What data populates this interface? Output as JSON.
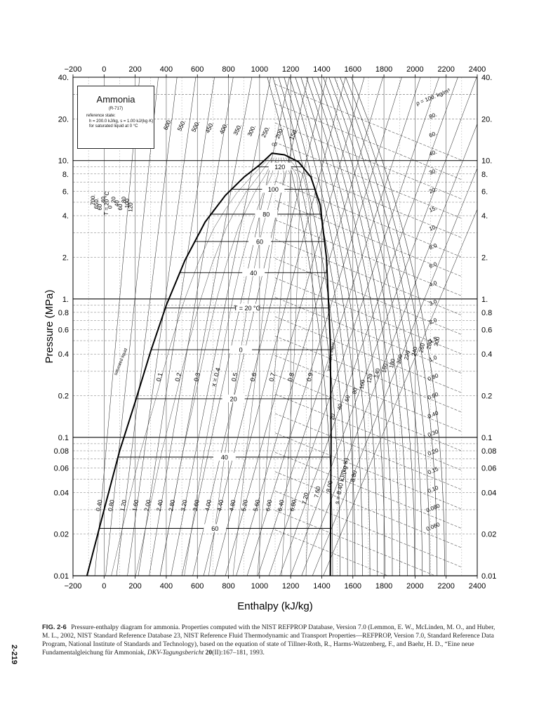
{
  "chart_data": {
    "type": "line",
    "xlabel": "Enthalpy (kJ/kg)",
    "ylabel": "Pressure (MPa)",
    "xlim": [
      -200,
      2400
    ],
    "ylim": [
      0.01,
      40
    ],
    "yscale": "log",
    "x_ticks": [
      -200,
      0,
      200,
      400,
      600,
      800,
      1000,
      1200,
      1400,
      1600,
      1800,
      2000,
      2200,
      2400
    ],
    "x_tick_labels": [
      "−200",
      "0",
      "200",
      "400",
      "600",
      "800",
      "1000",
      "1200",
      "1400",
      "1600",
      "1800",
      "2000",
      "2200",
      "2400"
    ],
    "y_ticks": [
      0.01,
      0.02,
      0.04,
      0.06,
      0.08,
      0.1,
      0.2,
      0.4,
      0.6,
      0.8,
      1,
      2,
      4,
      6,
      8,
      10,
      20,
      40
    ],
    "y_tick_labels": [
      "0.01",
      "0.02",
      "0.04",
      "0.06",
      "0.08",
      "0.1",
      "0.2",
      "0.4",
      "0.6",
      "0.8",
      "1.",
      "2.",
      "4.",
      "6.",
      "8.",
      "10.",
      "20.",
      "40."
    ],
    "grid": true,
    "legend": {
      "title": "Ammonia",
      "subtitle": "(R-717)",
      "lines": [
        "reference state:",
        "h = 200.0 kJ/kg,  s = 1.00 kJ/(kg·K)",
        "for saturated liquid at 0 °C"
      ]
    },
    "saturation_dome": {
      "liquid": {
        "h": [
          -110,
          0,
          100,
          200,
          300,
          400,
          520,
          650,
          780,
          900,
          1000,
          1080
        ],
        "p": [
          0.01,
          0.03,
          0.08,
          0.18,
          0.42,
          0.9,
          1.9,
          3.6,
          5.6,
          7.6,
          9.3,
          11.3
        ]
      },
      "vapor": {
        "h": [
          1080,
          1160,
          1250,
          1330,
          1390,
          1430,
          1455,
          1460,
          1455
        ],
        "p": [
          11.3,
          11.0,
          9.8,
          7.6,
          4.8,
          2.0,
          0.5,
          0.1,
          0.01
        ]
      },
      "critical_point_label": "cp",
      "liquid_label": "saturated liquid",
      "vapor_label": "saturated vapor"
    },
    "isotherm_labels_in_dome": [
      {
        "label": "120",
        "p": 9.0
      },
      {
        "label": "100",
        "p": 6.2
      },
      {
        "label": "80",
        "p": 4.1
      },
      {
        "label": "60",
        "p": 2.6
      },
      {
        "label": "40",
        "p": 1.55
      },
      {
        "label": "T = 20 °C",
        "p": 0.86
      },
      {
        "label": "0",
        "p": 0.43
      },
      {
        "label": "20",
        "p": 0.19
      },
      {
        "label": "40",
        "p": 0.072
      },
      {
        "label": "60",
        "p": 0.022
      }
    ],
    "quality_labels": [
      "0.1",
      "0.2",
      "0.3",
      "x = 0.4",
      "0.5",
      "0.6",
      "0.7",
      "0.8",
      "0.9"
    ],
    "entropy_labels_bottom": [
      "0.40",
      "0.80",
      "1.20",
      "1.60",
      "2.00",
      "2.40",
      "2.80",
      "3.20",
      "3.60",
      "4.00",
      "4.40",
      "4.80",
      "5.20",
      "5.60",
      "6.00",
      "6.40",
      "6.80",
      "7.20",
      "7.60",
      "8.00",
      "s = 8.40 kJ/(kg·K)",
      "8.80"
    ],
    "density_labels_right": [
      "ρ = 100. kg/m³",
      "80.",
      "60.",
      "40.",
      "30.",
      "20.",
      "15.",
      "10.",
      "8.0",
      "6.0",
      "4.0",
      "3.0",
      "2.0",
      "1.5",
      "1.0",
      "0.80",
      "0.60",
      "0.40",
      "0.30",
      "0.20",
      "0.15",
      "0.10",
      "0.080",
      "0.060"
    ],
    "isotherm_labels_top": [
      "600.",
      "550.",
      "500.",
      "450.",
      "400.",
      "350.",
      "300.",
      "250.",
      "200.",
      "150."
    ],
    "isotherm_labels_left": [
      "700.",
      "650.",
      "60",
      "40",
      "T = 20 °C",
      "0",
      "20",
      "40",
      "60",
      "80",
      "100",
      "120"
    ],
    "superheat_labels": [
      "20",
      "40",
      "60",
      "80",
      "100",
      "120",
      "140",
      "160",
      "180",
      "200",
      "220",
      "240",
      "260",
      "280",
      "300"
    ]
  },
  "caption": {
    "fig_no": "FIG. 2-6",
    "text_a": "Pressure-enthalpy diagram for ammonia.  Properties computed with the NIST REFPROP Database, Version 7.0 (Lemmon, E. W., McLinden, M. O., and Huber, M. L., 2002, NIST Standard Reference Database 23, NIST Reference Fluid Thermodynamic and Transport Properties—REFPROP, Version 7.0, Standard Reference Data Program, National Institute of Standards and Technology), based on the equation of state of Tillner-Roth, R., Harms-Watzenberg, F., and Baehr, H. D., “Eine neue Fundamentalgleichung für Ammoniak,",
    "journal": "DKV-Tagungsbericht",
    "volume": "20",
    "text_b": "(II):167–181, 1993."
  },
  "page_number": "2-219"
}
